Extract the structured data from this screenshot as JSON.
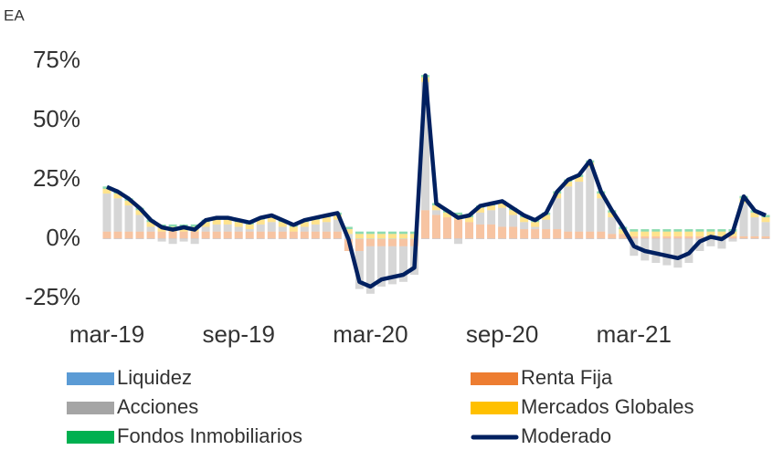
{
  "chart_data": {
    "type": "stacked_bar_line",
    "y_axis_title": "EA",
    "categories": [
      "mar-19",
      null,
      null,
      null,
      null,
      null,
      null,
      null,
      null,
      null,
      null,
      null,
      "sep-19",
      null,
      null,
      null,
      null,
      null,
      null,
      null,
      null,
      null,
      null,
      null,
      "mar-20",
      null,
      null,
      null,
      null,
      null,
      null,
      null,
      null,
      null,
      null,
      null,
      "sep-20",
      null,
      null,
      null,
      null,
      null,
      null,
      null,
      null,
      null,
      null,
      null,
      "mar-21",
      null,
      null,
      null,
      null,
      null,
      null,
      null,
      null,
      null,
      null,
      null,
      null
    ],
    "series": [
      {
        "name": "Liquidez",
        "color": "#5b9bd5",
        "values": [
          0.2,
          0.2,
          0.2,
          0.2,
          0.2,
          0.2,
          0.2,
          0.2,
          0.2,
          0.2,
          0.2,
          0.2,
          0.2,
          0.2,
          0.2,
          0.2,
          0.2,
          0.2,
          0.2,
          0.2,
          0.2,
          0.2,
          0.2,
          0.2,
          0.2,
          0.2,
          0.2,
          0.2,
          0.2,
          0.2,
          0.2,
          0.2,
          0.2,
          0.2,
          0.2,
          0.2,
          0.2,
          0.2,
          0.2,
          0.2,
          0.2,
          0.2,
          0.2,
          0.2,
          0.2,
          0.2,
          0.2,
          0.2,
          0.2,
          0.2,
          0.2,
          0.2,
          0.2,
          0.2,
          0.2,
          0.2,
          0.2,
          0.2,
          0.2,
          0.2,
          0.2
        ]
      },
      {
        "name": "Renta Fija",
        "color": "#ed7d31",
        "values": [
          3,
          3,
          3,
          3,
          3,
          3,
          3,
          3,
          3,
          3,
          3,
          3,
          3,
          3,
          3,
          3,
          3,
          3,
          3,
          3,
          3,
          3,
          -5,
          -5,
          -3,
          -3,
          -3,
          -3,
          -3,
          12,
          10,
          9,
          8,
          7,
          6,
          6,
          5,
          5,
          4,
          4,
          4,
          4,
          3,
          3,
          3,
          3,
          2,
          2,
          1,
          1,
          1,
          1,
          1,
          1,
          1,
          1,
          1,
          1,
          1,
          1,
          1
        ]
      },
      {
        "name": "Acciones",
        "color": "#a5a5a5",
        "values": [
          16,
          14,
          11,
          7,
          2,
          -1,
          -2,
          -1,
          -2,
          2,
          3,
          3,
          2,
          1,
          3,
          4,
          2,
          0,
          2,
          3,
          4,
          5,
          2,
          -16,
          -20,
          -17,
          -16,
          -15,
          -12,
          54,
          2,
          0,
          -2,
          0,
          5,
          6,
          8,
          5,
          3,
          1,
          4,
          13,
          19,
          21,
          27,
          14,
          7,
          0,
          -7,
          -9,
          -10,
          -11,
          -12,
          -10,
          -5,
          -3,
          -4,
          -1,
          14,
          8,
          6
        ]
      },
      {
        "name": "Mercados Globales",
        "color": "#ffc000",
        "values": [
          2,
          2,
          2,
          2,
          2,
          2,
          2,
          2,
          2,
          2,
          2,
          2,
          2,
          2,
          2,
          2,
          2,
          2,
          2,
          2,
          2,
          2,
          2,
          2,
          2,
          2,
          2,
          2,
          2,
          2,
          2,
          2,
          2,
          2,
          2,
          2,
          2,
          2,
          2,
          2,
          2,
          2,
          2,
          2,
          2,
          2,
          2,
          2,
          2,
          2,
          2,
          2,
          2,
          2,
          2,
          2,
          2,
          2,
          2,
          2,
          2
        ]
      },
      {
        "name": "Fondos Inmobiliarios",
        "color": "#00b050",
        "values": [
          1,
          1,
          1,
          1,
          1,
          1,
          1,
          1,
          1,
          1,
          1,
          1,
          1,
          1,
          1,
          1,
          1,
          1,
          1,
          1,
          1,
          1,
          1,
          1,
          1,
          1,
          1,
          1,
          1,
          1,
          1,
          1,
          1,
          1,
          1,
          1,
          1,
          1,
          1,
          1,
          1,
          1,
          1,
          1,
          1,
          1,
          1,
          1,
          1,
          1,
          1,
          1,
          1,
          1,
          1,
          1,
          1,
          1,
          1,
          1,
          1
        ]
      },
      {
        "name": "Moderado",
        "color": "#002060",
        "kind": "line",
        "values": [
          22,
          20,
          17,
          13,
          8,
          5,
          4,
          5,
          4,
          8,
          9,
          9,
          8,
          7,
          9,
          10,
          8,
          6,
          8,
          9,
          10,
          11,
          0,
          -18,
          -20,
          -17,
          -16,
          -15,
          -12,
          69,
          15,
          12,
          9,
          10,
          14,
          15,
          16,
          13,
          10,
          8,
          11,
          20,
          25,
          27,
          33,
          20,
          12,
          5,
          -3,
          -5,
          -6,
          -7,
          -8,
          -6,
          -1,
          1,
          0,
          3,
          18,
          12,
          10
        ]
      }
    ],
    "ylim": [
      -25,
      75
    ],
    "yticks": [
      {
        "value": -25,
        "label": "-25%"
      },
      {
        "value": 0,
        "label": "0%"
      },
      {
        "value": 25,
        "label": "25%"
      },
      {
        "value": 50,
        "label": "50%"
      },
      {
        "value": 75,
        "label": "75%"
      }
    ],
    "grid": false
  }
}
